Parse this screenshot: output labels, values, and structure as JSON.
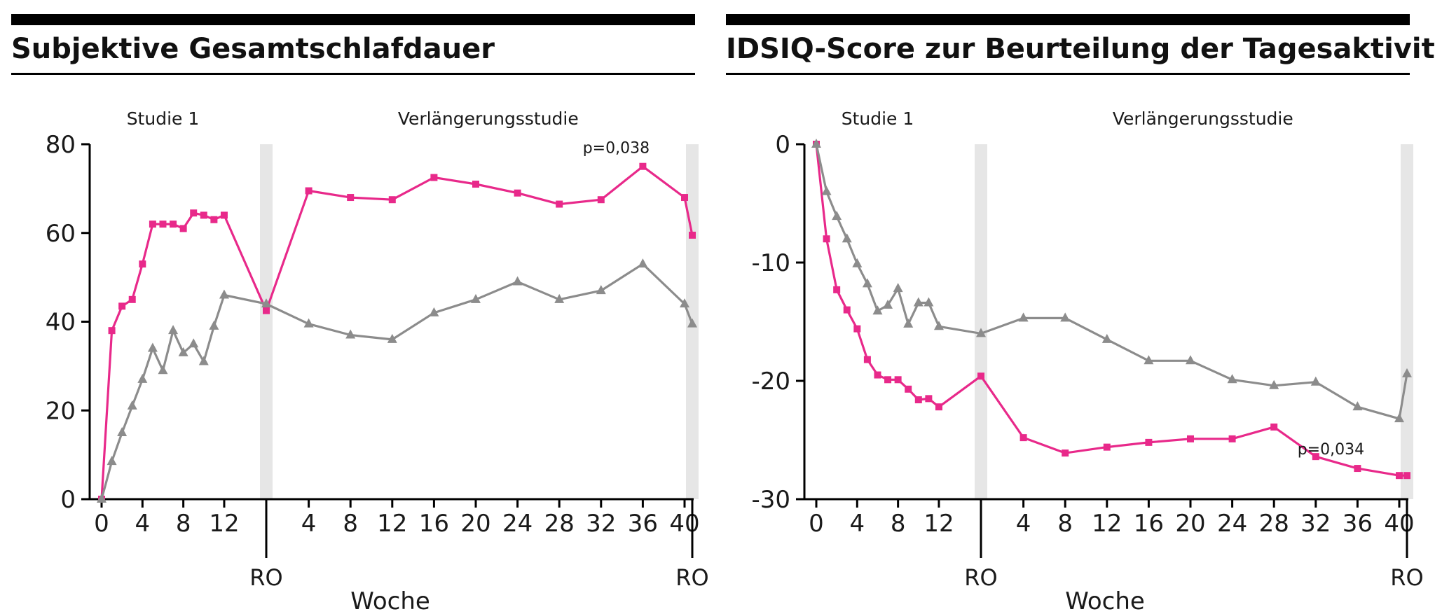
{
  "chart_data": [
    {
      "type": "line",
      "title": "Subjektive Gesamtschlafdauer",
      "xlabel": "Woche",
      "ylabel": "",
      "ylim": [
        0,
        80
      ],
      "yticks": [
        0,
        20,
        40,
        60,
        80
      ],
      "section_labels": [
        "Studie 1",
        "Verlängerungsstudie"
      ],
      "x_ticks_study": [
        "0",
        "4",
        "8",
        "12"
      ],
      "x_ticks_ext": [
        "4",
        "8",
        "12",
        "16",
        "20",
        "24",
        "28",
        "32",
        "36",
        "40"
      ],
      "ro_label": "RO",
      "annotation": "p=0,038",
      "annotation_at": {
        "phase": "ext",
        "week": 36
      },
      "series": [
        {
          "color": "#e8298a",
          "marker": "square",
          "study": [
            [
              0,
              0
            ],
            [
              1,
              38
            ],
            [
              2,
              43.5
            ],
            [
              3,
              45
            ],
            [
              4,
              53
            ],
            [
              5,
              62
            ],
            [
              6,
              62
            ],
            [
              7,
              62
            ],
            [
              8,
              61
            ],
            [
              9,
              64.5
            ],
            [
              10,
              64
            ],
            [
              11,
              63
            ],
            [
              12,
              64
            ]
          ],
          "ro_start": 42.5,
          "ext": [
            [
              4,
              69.5
            ],
            [
              8,
              68
            ],
            [
              12,
              67.5
            ],
            [
              16,
              72.5
            ],
            [
              20,
              71
            ],
            [
              24,
              69
            ],
            [
              28,
              66.5
            ],
            [
              32,
              67.5
            ],
            [
              36,
              75
            ],
            [
              40,
              68
            ]
          ],
          "ro_end": 59.5
        },
        {
          "color": "#8c8c8c",
          "marker": "triangle",
          "study": [
            [
              0,
              0
            ],
            [
              1,
              8.5
            ],
            [
              2,
              15
            ],
            [
              3,
              21
            ],
            [
              4,
              27
            ],
            [
              5,
              34
            ],
            [
              6,
              29
            ],
            [
              7,
              38
            ],
            [
              8,
              33
            ],
            [
              9,
              35
            ],
            [
              10,
              31
            ],
            [
              11,
              39
            ],
            [
              12,
              46
            ]
          ],
          "ro_start": 44,
          "ext": [
            [
              4,
              39.5
            ],
            [
              8,
              37
            ],
            [
              12,
              36
            ],
            [
              16,
              42
            ],
            [
              20,
              45
            ],
            [
              24,
              49
            ],
            [
              28,
              45
            ],
            [
              32,
              47
            ],
            [
              36,
              53
            ],
            [
              40,
              44
            ]
          ],
          "ro_end": 39.5
        }
      ]
    },
    {
      "type": "line",
      "title": "IDSIQ-Score zur Beurteilung der Tagesaktivität",
      "xlabel": "Woche",
      "ylabel": "",
      "ylim": [
        -30,
        0
      ],
      "yticks": [
        0,
        -10,
        -20,
        -30
      ],
      "section_labels": [
        "Studie 1",
        "Verlängerungsstudie"
      ],
      "x_ticks_study": [
        "0",
        "4",
        "8",
        "12"
      ],
      "x_ticks_ext": [
        "4",
        "8",
        "12",
        "16",
        "20",
        "24",
        "28",
        "32",
        "36",
        "40"
      ],
      "ro_label": "RO",
      "annotation": "p=0,034",
      "annotation_at": {
        "phase": "ext",
        "week": 36
      },
      "series": [
        {
          "color": "#e8298a",
          "marker": "square",
          "study": [
            [
              0,
              0
            ],
            [
              1,
              -8
            ],
            [
              2,
              -12.3
            ],
            [
              3,
              -14
            ],
            [
              4,
              -15.6
            ],
            [
              5,
              -18.2
            ],
            [
              6,
              -19.5
            ],
            [
              7,
              -19.9
            ],
            [
              8,
              -19.9
            ],
            [
              9,
              -20.7
            ],
            [
              10,
              -21.6
            ],
            [
              11,
              -21.5
            ],
            [
              12,
              -22.2
            ]
          ],
          "ro_start": -19.6,
          "ext": [
            [
              4,
              -24.8
            ],
            [
              8,
              -26.1
            ],
            [
              12,
              -25.6
            ],
            [
              16,
              -25.2
            ],
            [
              20,
              -24.9
            ],
            [
              24,
              -24.9
            ],
            [
              28,
              -23.9
            ],
            [
              32,
              -26.4
            ],
            [
              36,
              -27.4
            ],
            [
              40,
              -28
            ]
          ],
          "ro_end": -28
        },
        {
          "color": "#8c8c8c",
          "marker": "triangle",
          "study": [
            [
              0,
              0
            ],
            [
              1,
              -4
            ],
            [
              2,
              -6.1
            ],
            [
              3,
              -8
            ],
            [
              4,
              -10.1
            ],
            [
              5,
              -11.8
            ],
            [
              6,
              -14.1
            ],
            [
              7,
              -13.6
            ],
            [
              8,
              -12.2
            ],
            [
              9,
              -15.2
            ],
            [
              10,
              -13.4
            ],
            [
              11,
              -13.4
            ],
            [
              12,
              -15.4
            ]
          ],
          "ro_start": -16,
          "ext": [
            [
              4,
              -14.7
            ],
            [
              8,
              -14.7
            ],
            [
              12,
              -16.5
            ],
            [
              16,
              -18.3
            ],
            [
              20,
              -18.3
            ],
            [
              24,
              -19.9
            ],
            [
              28,
              -20.4
            ],
            [
              32,
              -20.1
            ],
            [
              36,
              -22.2
            ],
            [
              40,
              -23.2
            ]
          ],
          "ro_end": -19.4
        }
      ]
    }
  ]
}
